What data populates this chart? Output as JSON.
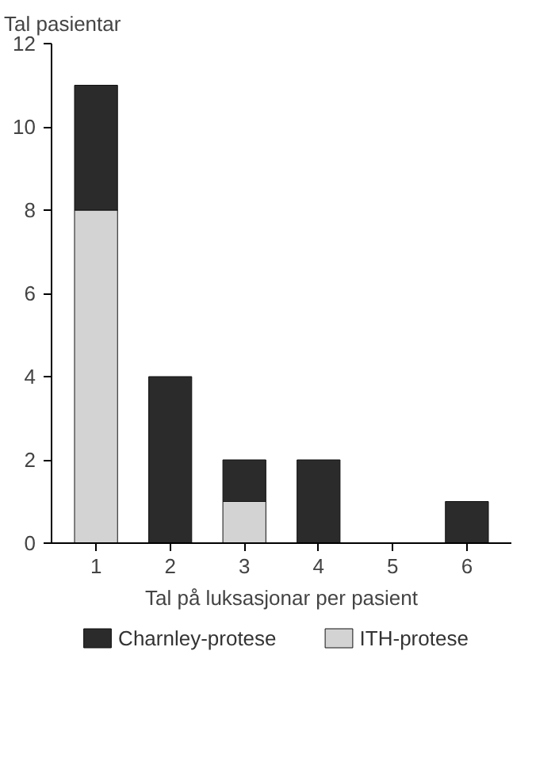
{
  "chart_data": {
    "type": "bar",
    "stacked": true,
    "ylabel": "Tal pasientar",
    "xlabel": "Tal på luksasjonar per pasient",
    "categories": [
      "1",
      "2",
      "3",
      "4",
      "5",
      "6"
    ],
    "series": [
      {
        "name": "ITH-protese",
        "color": "#d3d3d3",
        "values": [
          8,
          0,
          1,
          0,
          0,
          0
        ]
      },
      {
        "name": "Charnley-protese",
        "color": "#2b2b2b",
        "values": [
          3,
          4,
          1,
          2,
          0,
          1
        ]
      }
    ],
    "ylim": [
      0,
      12
    ],
    "yticks": [
      0,
      2,
      4,
      6,
      8,
      10,
      12
    ],
    "grid": false,
    "legend": "bottom"
  }
}
